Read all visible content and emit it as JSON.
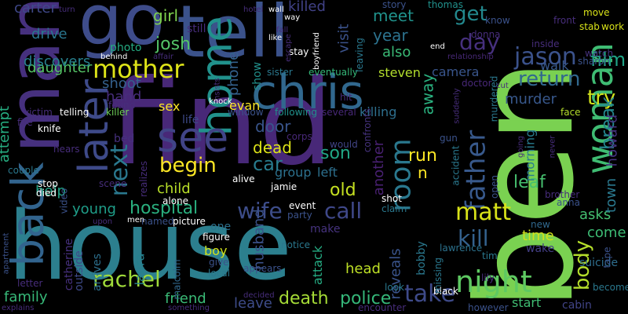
{
  "background": "#000000",
  "words": [
    {
      "text": "find",
      "color": "#482878"
    },
    {
      "text": "ben",
      "color": "#7ad151"
    },
    {
      "text": "house",
      "color": "#2c7f8e"
    },
    {
      "text": "tell",
      "color": "#3b528b"
    },
    {
      "text": "man",
      "color": "#46307e"
    },
    {
      "text": "go",
      "color": "#3e4c8a"
    },
    {
      "text": "chris",
      "color": "#31688e"
    },
    {
      "text": "woman",
      "color": "#3fbc73"
    },
    {
      "text": "home",
      "color": "#21918c"
    },
    {
      "text": "back",
      "color": "#32648e"
    },
    {
      "text": "later",
      "color": "#3e4a89"
    },
    {
      "text": "see",
      "color": "#414487"
    },
    {
      "text": "mother",
      "color": "#dde318"
    },
    {
      "text": "night",
      "color": "#5ec962"
    },
    {
      "text": "room",
      "color": "#2a788e"
    },
    {
      "text": "father",
      "color": "#38598c"
    },
    {
      "text": "body",
      "color": "#b5de2b"
    },
    {
      "text": "matt",
      "color": "#d8e219"
    },
    {
      "text": "kill",
      "color": "#34618d"
    },
    {
      "text": "jason",
      "color": "#3b528b"
    },
    {
      "text": "begin",
      "color": "#fde725"
    },
    {
      "text": "wife",
      "color": "#3d4d8a"
    },
    {
      "text": "call",
      "color": "#3f4889"
    },
    {
      "text": "hospital",
      "color": "#2ab07f"
    },
    {
      "text": "death",
      "color": "#a5db36"
    },
    {
      "text": "police",
      "color": "#35b779"
    },
    {
      "text": "rachel",
      "color": "#9fda3a"
    },
    {
      "text": "take",
      "color": "#3e4a89"
    },
    {
      "text": "return",
      "color": "#31688e"
    },
    {
      "text": "get",
      "color": "#23898e"
    },
    {
      "text": "day",
      "color": "#46307e"
    },
    {
      "text": "try",
      "color": "#d2e21b"
    },
    {
      "text": "film",
      "color": "#20a486"
    },
    {
      "text": "break",
      "color": "#24878e"
    },
    {
      "text": "next",
      "color": "#2a788e"
    },
    {
      "text": "dead",
      "color": "#dde318"
    },
    {
      "text": "car",
      "color": "#287c8e"
    },
    {
      "text": "child",
      "color": "#b8de29"
    },
    {
      "text": "young",
      "color": "#1f9e89"
    },
    {
      "text": "friend",
      "color": "#3aba76"
    },
    {
      "text": "leave",
      "color": "#3e4c8a"
    },
    {
      "text": "husband",
      "color": "#3b528b"
    },
    {
      "text": "murder",
      "color": "#38588c"
    },
    {
      "text": "time",
      "color": "#d0e11c"
    },
    {
      "text": "come",
      "color": "#3dbc74"
    },
    {
      "text": "asks",
      "color": "#44bf70"
    },
    {
      "text": "reveals",
      "color": "#3a548c"
    },
    {
      "text": "another",
      "color": "#482071"
    },
    {
      "text": "run",
      "color": "#fde725"
    },
    {
      "text": "son",
      "color": "#21a685"
    },
    {
      "text": "old",
      "color": "#c5e021"
    },
    {
      "text": "door",
      "color": "#39558c"
    },
    {
      "text": "group",
      "color": "#2c718e"
    },
    {
      "text": "help",
      "color": "#20a386"
    },
    {
      "text": "daughter",
      "color": "#56c667"
    },
    {
      "text": "attempt",
      "color": "#26ad81"
    },
    {
      "text": "family",
      "color": "#37b878"
    },
    {
      "text": "head",
      "color": "#bddf26"
    },
    {
      "text": "attack",
      "color": "#25ab82"
    },
    {
      "text": "josh",
      "color": "#54c568"
    },
    {
      "text": "girl",
      "color": "#7fd34e"
    },
    {
      "text": "year",
      "color": "#2c728e"
    },
    {
      "text": "meet",
      "color": "#20928c"
    },
    {
      "text": "killed",
      "color": "#414287"
    },
    {
      "text": "also",
      "color": "#3aba76"
    },
    {
      "text": "visit",
      "color": "#3b528b"
    },
    {
      "text": "drive",
      "color": "#2a768e"
    },
    {
      "text": "discovers",
      "color": "#27808e"
    },
    {
      "text": "shoot",
      "color": "#34608d"
    },
    {
      "text": "hand",
      "color": "#472d7b"
    },
    {
      "text": "sex",
      "color": "#fde725"
    },
    {
      "text": "evan",
      "color": "#fde725"
    },
    {
      "text": "killing",
      "color": "#2e6f8e"
    },
    {
      "text": "phone",
      "color": "#34618d"
    },
    {
      "text": "away",
      "color": "#2ab07f"
    },
    {
      "text": "leaf",
      "color": "#46c06f"
    },
    {
      "text": "town",
      "color": "#2a788e"
    },
    {
      "text": "howard",
      "color": "#46337f"
    },
    {
      "text": "walk",
      "color": "#38598c"
    },
    {
      "text": "camera",
      "color": "#39558c"
    },
    {
      "text": "morning",
      "color": "#287c8e"
    },
    {
      "text": "carter",
      "color": "#3f4889"
    },
    {
      "text": "photo",
      "color": "#25ab82"
    },
    {
      "text": "boy",
      "color": "#d2e21b"
    },
    {
      "text": "laura",
      "color": "#26818e"
    },
    {
      "text": "catherine",
      "color": "#46307e"
    },
    {
      "text": "arrives",
      "color": "#2d708e"
    },
    {
      "text": "outside",
      "color": "#3e4a89"
    },
    {
      "text": "steven",
      "color": "#b2dd2d"
    },
    {
      "text": "suicide",
      "color": "#2e6e8e"
    },
    {
      "text": "start",
      "color": "#40bd72"
    },
    {
      "text": "wake",
      "color": "#433e85"
    },
    {
      "text": "one",
      "color": "#2c718e"
    },
    {
      "text": "life",
      "color": "#3e4a89"
    },
    {
      "text": "left",
      "color": "#2d708e"
    },
    {
      "text": "n",
      "color": "#fde725"
    },
    {
      "text": "make",
      "color": "#46337f"
    },
    {
      "text": "bobby",
      "color": "#2a788e"
    },
    {
      "text": "malcolm",
      "color": "#31688e"
    },
    {
      "text": "cabin",
      "color": "#414487"
    },
    {
      "text": "lawrence",
      "color": "#2c728e"
    },
    {
      "text": "donna",
      "color": "#472d7b"
    },
    {
      "text": "thomas",
      "color": "#21918c"
    },
    {
      "text": "story",
      "color": "#3b528b"
    },
    {
      "text": "still",
      "color": "#472d7b"
    },
    {
      "text": "gun",
      "color": "#3b528b"
    },
    {
      "text": "bed",
      "color": "#46307e"
    },
    {
      "text": "show",
      "color": "#21918c"
    },
    {
      "text": "sister",
      "color": "#2a788e"
    },
    {
      "text": "eventually",
      "color": "#35b779"
    },
    {
      "text": "stay",
      "color": "#ffffff"
    },
    {
      "text": "knife",
      "color": "#ffffff"
    },
    {
      "text": "victim",
      "color": "#472d7b"
    },
    {
      "text": "killer",
      "color": "#6ece58"
    },
    {
      "text": "window",
      "color": "#3b528b"
    },
    {
      "text": "following",
      "color": "#21918c"
    },
    {
      "text": "several",
      "color": "#482878"
    },
    {
      "text": "hit",
      "color": "#472d7b"
    },
    {
      "text": "corpse",
      "color": "#482878"
    },
    {
      "text": "would",
      "color": "#414487"
    },
    {
      "text": "confronts",
      "color": "#46337f"
    },
    {
      "text": "murdered",
      "color": "#2a788e"
    },
    {
      "text": "doctor",
      "color": "#482878"
    },
    {
      "text": "relationship",
      "color": "#482878"
    },
    {
      "text": "watch",
      "color": "#46337f"
    },
    {
      "text": "sharon",
      "color": "#3b528b"
    },
    {
      "text": "move",
      "color": "#d8e219"
    },
    {
      "text": "stab",
      "color": "#d8e219"
    },
    {
      "text": "work",
      "color": "#d8e219"
    },
    {
      "text": "front",
      "color": "#472d7b"
    },
    {
      "text": "know",
      "color": "#3b528b"
    },
    {
      "text": "inside",
      "color": "#472d7b"
    },
    {
      "text": "face",
      "color": "#b5de2b"
    },
    {
      "text": "new",
      "color": "#31688e"
    },
    {
      "text": "brother",
      "color": "#472d7b"
    },
    {
      "text": "anna",
      "color": "#3b528b"
    },
    {
      "text": "tim",
      "color": "#2a788e"
    },
    {
      "text": "lily",
      "color": "#472d7b"
    },
    {
      "text": "tape",
      "color": "#3b528b"
    },
    {
      "text": "becomes",
      "color": "#2a788e"
    },
    {
      "text": "however",
      "color": "#3b528b"
    },
    {
      "text": "black",
      "color": "#ffffff"
    },
    {
      "text": "look",
      "color": "#2a788e"
    },
    {
      "text": "encounter",
      "color": "#472d7b"
    },
    {
      "text": "missing",
      "color": "#2a788e"
    },
    {
      "text": "shot",
      "color": "#ffffff"
    },
    {
      "text": "claim",
      "color": "#2a788e"
    },
    {
      "text": "event",
      "color": "#ffffff"
    },
    {
      "text": "party",
      "color": "#3b528b"
    },
    {
      "text": "appears",
      "color": "#3b528b"
    },
    {
      "text": "notice",
      "color": "#2a788e"
    },
    {
      "text": "local",
      "color": "#2a788e"
    },
    {
      "text": "give",
      "color": "#3b528b"
    },
    {
      "text": "figure",
      "color": "#ffffff"
    },
    {
      "text": "picture",
      "color": "#ffffff"
    },
    {
      "text": "named",
      "color": "#3b528b"
    },
    {
      "text": "alone",
      "color": "#ffffff"
    },
    {
      "text": "alive",
      "color": "#ffffff"
    },
    {
      "text": "jamie",
      "color": "#ffffff"
    },
    {
      "text": "realizes",
      "color": "#472d7b"
    },
    {
      "text": "scene",
      "color": "#472d7b"
    },
    {
      "text": "video",
      "color": "#3b528b"
    },
    {
      "text": "died",
      "color": "#ffffff"
    },
    {
      "text": "stop",
      "color": "#ffffff"
    },
    {
      "text": "couple",
      "color": "#2a788e"
    },
    {
      "text": "hears",
      "color": "#472d7b"
    },
    {
      "text": "fire",
      "color": "#472d7b"
    },
    {
      "text": "telling",
      "color": "#ffffff"
    },
    {
      "text": "found",
      "color": "#472d7b"
    },
    {
      "text": "behind",
      "color": "#ffffff"
    },
    {
      "text": "affair",
      "color": "#472d7b"
    },
    {
      "text": "turn",
      "color": "#472d7b"
    },
    {
      "text": "hotel",
      "color": "#472d7b"
    },
    {
      "text": "wall",
      "color": "#ffffff"
    },
    {
      "text": "way",
      "color": "#ffffff"
    },
    {
      "text": "fall",
      "color": "#472d7b"
    },
    {
      "text": "like",
      "color": "#ffffff"
    },
    {
      "text": "escape",
      "color": "#472d7b"
    },
    {
      "text": "boyfriend",
      "color": "#ffffff"
    },
    {
      "text": "leaving",
      "color": "#2a788e"
    },
    {
      "text": "end",
      "color": "#ffffff"
    },
    {
      "text": "insists",
      "color": "#472d7b"
    },
    {
      "text": "knock",
      "color": "#ffffff"
    },
    {
      "text": "suddenly",
      "color": "#472d7b"
    },
    {
      "text": "accident",
      "color": "#2a788e"
    },
    {
      "text": "open",
      "color": "#3b528b"
    },
    {
      "text": "going",
      "color": "#472d7b"
    },
    {
      "text": "never",
      "color": "#472d7b"
    },
    {
      "text": "cut",
      "color": "#472d7b"
    },
    {
      "text": "letter",
      "color": "#472d7b"
    },
    {
      "text": "apartment",
      "color": "#3b528b"
    },
    {
      "text": "explains",
      "color": "#472d7b"
    },
    {
      "text": "something",
      "color": "#472d7b"
    },
    {
      "text": "upon",
      "color": "#472d7b"
    },
    {
      "text": "men",
      "color": "#ffffff"
    },
    {
      "text": "decided",
      "color": "#472d7b"
    }
  ]
}
